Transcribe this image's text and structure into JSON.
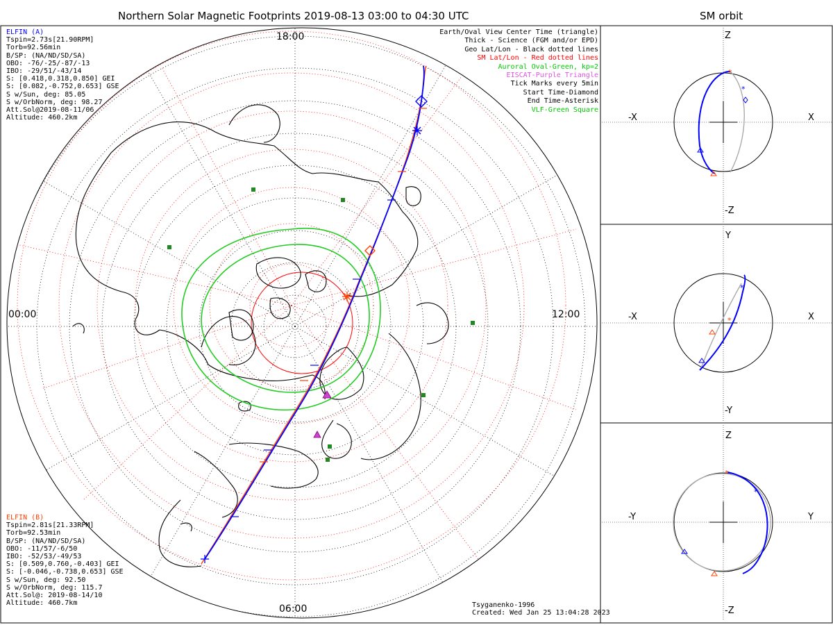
{
  "title": "Northern Solar Magnetic Footprints 2019-08-13 03:00 to 04:30 UTC",
  "orbit_panel_title": "SM orbit",
  "hour_labels": {
    "top": "18:00",
    "left": "00:00",
    "right": "12:00",
    "bottom": "06:00"
  },
  "elfin_a": {
    "name": "ELFIN (A)",
    "color": "#0000ff",
    "lines": [
      "Tspin=2.73s[21.90RPM]",
      "Torb=92.56min",
      "B/SP: (NA/ND/SD/SA)",
      "OBO: -76/-25/-87/-13",
      "IBO: -29/51/-43/14",
      "S: [0.418,0.318,0.850] GEI",
      "S: [0.082,-0.752,0.653] GSE",
      "S w/Sun, deg: 85.05",
      "S w/OrbNorm, deg: 98.27",
      "Att.Sol@2019-08-11/06",
      "Altitude: 460.2km"
    ]
  },
  "elfin_b": {
    "name": "ELFIN (B)",
    "color": "#ff4000",
    "lines": [
      "Tspin=2.81s[21.33RPM]",
      "Torb=92.53min",
      "B/SP: (NA/ND/SD/SA)",
      "OBO: -11/57/-6/50",
      "IBO: -52/53/-49/53",
      "S: [0.509,0.760,-0.403] GEI",
      "S: [-0.046,-0.738,0.653] GSE",
      "S w/Sun, deg: 92.50",
      "S w/OrbNorm, deg: 115.7",
      "Att.Sol@: 2019-08-14/10",
      "Altitude: 460.7km"
    ]
  },
  "legend": [
    {
      "text": "Earth/Oval View Center Time (triangle)",
      "color": "#000000"
    },
    {
      "text": "Thick - Science (FGM and/or EPD)",
      "color": "#000000"
    },
    {
      "text": "Geo Lat/Lon - Black dotted lines",
      "color": "#000000"
    },
    {
      "text": "SM Lat/Lon - Red dotted lines",
      "color": "#ff0000"
    },
    {
      "text": "Auroral Oval-Green, kp=2",
      "color": "#00c800"
    },
    {
      "text": "EISCAT-Purple Triangle",
      "color": "#dd55dd"
    },
    {
      "text": "Tick Marks every 5min",
      "color": "#000000"
    },
    {
      "text": "Start Time-Diamond",
      "color": "#000000"
    },
    {
      "text": "End Time-Asterisk",
      "color": "#000000"
    },
    {
      "text": "VLF-Green Square",
      "color": "#00c800"
    }
  ],
  "footer": {
    "model": "Tsyganenko-1996",
    "created": "Created: Wed Jan 25 13:04:28 2023"
  },
  "orbit_panels": [
    {
      "top": "Z",
      "bottom": "-Z",
      "left": "-X",
      "right": "X"
    },
    {
      "top": "Y",
      "bottom": "-Y",
      "left": "-X",
      "right": "X"
    },
    {
      "top": "Z",
      "bottom": "-Z",
      "left": "-Y",
      "right": "Y"
    }
  ],
  "colors": {
    "elfin_a": "#0000ff",
    "elfin_b": "#ff4000",
    "oval": "#22cc22",
    "sm_grid": "#ff0000",
    "eiscat": "#cc44cc",
    "vlf": "#228822",
    "orbit_gray": "#aaaaaa"
  },
  "icons": [
    "start-diamond-icon",
    "end-asterisk-icon",
    "center-triangle-icon",
    "eiscat-triangle-icon",
    "vlf-square-icon"
  ]
}
